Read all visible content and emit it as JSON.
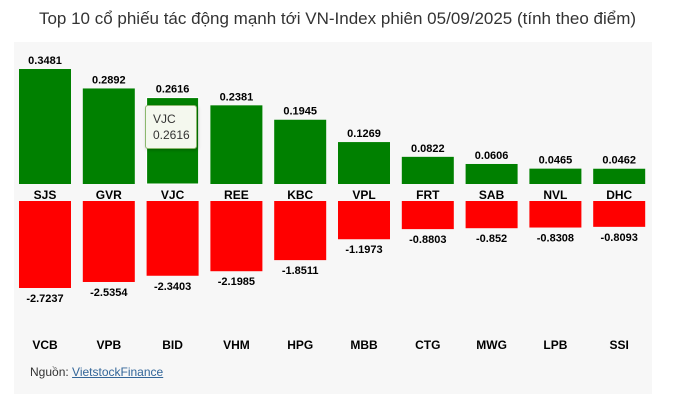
{
  "title": "Top 10 cổ phiếu tác động mạnh tới VN-Index phiên 05/09/2025 (tính theo điểm)",
  "source": {
    "label": "Nguồn:",
    "link_text": "VietstockFinance"
  },
  "tooltip": {
    "symbol": "VJC",
    "value": "0.2616"
  },
  "colors": {
    "positive": "#008000",
    "negative": "#ff0000"
  },
  "chart_data": {
    "type": "bar",
    "positive": {
      "categories": [
        "SJS",
        "GVR",
        "VJC",
        "REE",
        "KBC",
        "VPL",
        "FRT",
        "SAB",
        "NVL",
        "DHC"
      ],
      "values": [
        0.3481,
        0.2892,
        0.2616,
        0.2381,
        0.1945,
        0.1269,
        0.0822,
        0.0606,
        0.0465,
        0.0462
      ],
      "labels": [
        "0.3481",
        "0.2892",
        "0.2616",
        "0.2381",
        "0.1945",
        "0.1269",
        "0.0822",
        "0.0606",
        "0.0465",
        "0.0462"
      ]
    },
    "negative": {
      "categories": [
        "VCB",
        "VPB",
        "BID",
        "VHM",
        "HPG",
        "MBB",
        "CTG",
        "MWG",
        "LPB",
        "SSI"
      ],
      "values": [
        -2.7237,
        -2.5354,
        -2.3403,
        -2.1985,
        -1.8511,
        -1.1973,
        -0.8803,
        -0.852,
        -0.8308,
        -0.8093
      ],
      "labels": [
        "-2.7237",
        "-2.5354",
        "-2.3403",
        "-2.1985",
        "-1.8511",
        "-1.1973",
        "-0.8803",
        "-0.852",
        "-0.8308",
        "-0.8093"
      ]
    }
  }
}
